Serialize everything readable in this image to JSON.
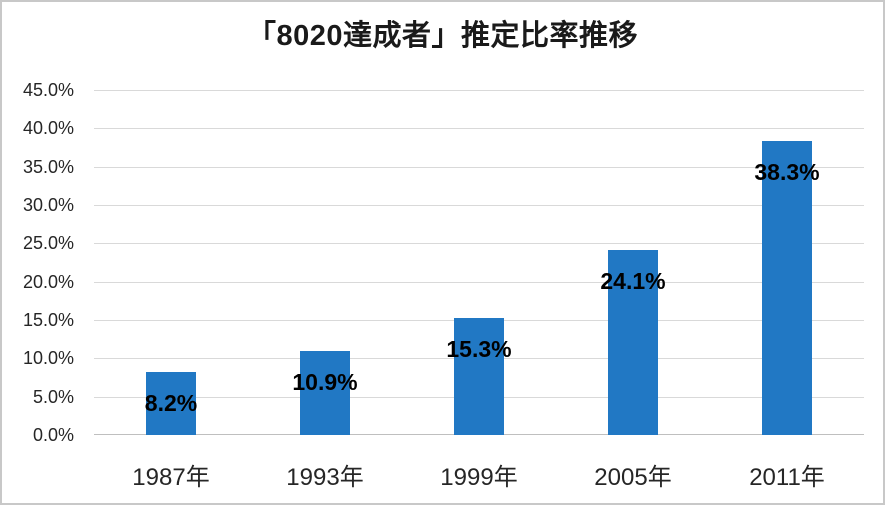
{
  "chart_data": {
    "type": "bar",
    "title": "「8020達成者」推定比率推移",
    "categories": [
      "1987年",
      "1993年",
      "1999年",
      "2005年",
      "2011年"
    ],
    "values": [
      8.2,
      10.9,
      15.3,
      24.1,
      38.3
    ],
    "data_labels": [
      "8.2%",
      "10.9%",
      "15.3%",
      "24.1%",
      "38.3%"
    ],
    "tick_values": [
      0,
      5,
      10,
      15,
      20,
      25,
      30,
      35,
      40,
      45
    ],
    "y_tick_labels": [
      "0.0%",
      "5.0%",
      "10.0%",
      "15.0%",
      "20.0%",
      "25.0%",
      "30.0%",
      "35.0%",
      "40.0%",
      "45.0%"
    ],
    "ylim": [
      0,
      45
    ],
    "grid": true,
    "legend": "none",
    "colors": {
      "bar": "#2178C4",
      "grid": "#D9D9D9",
      "axis": "#BFBFBF",
      "tick_text": "#262626",
      "label_text": "#000000",
      "title_text": "#1a1a1a",
      "frame_border": "#C8C8C8"
    }
  }
}
